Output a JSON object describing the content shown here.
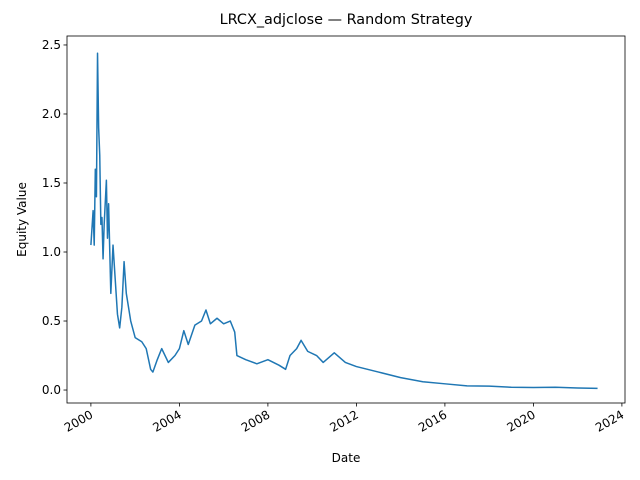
{
  "chart_data": {
    "type": "line",
    "title": "LRCX_adjclose — Random Strategy",
    "x_label": "Date",
    "y_label": "Equity Value",
    "color": "#1f77b4",
    "x": [
      2000.0,
      2000.1,
      2000.15,
      2000.2,
      2000.25,
      2000.3,
      2000.35,
      2000.4,
      2000.45,
      2000.5,
      2000.55,
      2000.6,
      2000.7,
      2000.75,
      2000.8,
      2000.9,
      2001.0,
      2001.1,
      2001.2,
      2001.3,
      2001.4,
      2001.5,
      2001.6,
      2001.8,
      2002.0,
      2002.3,
      2002.5,
      2002.7,
      2002.8,
      2003.0,
      2003.2,
      2003.5,
      2003.8,
      2004.0,
      2004.2,
      2004.4,
      2004.7,
      2005.0,
      2005.2,
      2005.4,
      2005.7,
      2006.0,
      2006.3,
      2006.5,
      2006.6,
      2007.0,
      2007.5,
      2008.0,
      2008.5,
      2008.8,
      2009.0,
      2009.3,
      2009.5,
      2009.8,
      2010.2,
      2010.5,
      2011.0,
      2011.5,
      2012.0,
      2013.0,
      2014.0,
      2015.0,
      2016.0,
      2017.0,
      2018.0,
      2019.0,
      2020.0,
      2021.0,
      2022.0,
      2022.9
    ],
    "values": [
      1.05,
      1.3,
      1.05,
      1.6,
      1.4,
      2.44,
      1.9,
      1.7,
      1.2,
      1.25,
      0.95,
      1.2,
      1.52,
      1.1,
      1.35,
      0.7,
      1.05,
      0.8,
      0.55,
      0.45,
      0.6,
      0.93,
      0.7,
      0.5,
      0.38,
      0.35,
      0.3,
      0.15,
      0.13,
      0.22,
      0.3,
      0.2,
      0.25,
      0.3,
      0.43,
      0.33,
      0.47,
      0.5,
      0.58,
      0.48,
      0.52,
      0.48,
      0.5,
      0.42,
      0.25,
      0.22,
      0.19,
      0.22,
      0.18,
      0.15,
      0.25,
      0.3,
      0.36,
      0.28,
      0.25,
      0.2,
      0.27,
      0.2,
      0.17,
      0.13,
      0.09,
      0.06,
      0.045,
      0.03,
      0.028,
      0.02,
      0.018,
      0.02,
      0.015,
      0.012
    ],
    "xlim": [
      1998.92,
      2024.14
    ],
    "xticks": [
      2000,
      2004,
      2008,
      2012,
      2016,
      2020,
      2024
    ],
    "ylim": [
      -0.094,
      2.565
    ],
    "yticks": [
      {
        "value": 0,
        "label": "0.0"
      },
      0.5,
      {
        "value": 1,
        "label": "1.0"
      },
      1.5,
      {
        "value": 2,
        "label": "2.0"
      },
      2.5
    ]
  }
}
